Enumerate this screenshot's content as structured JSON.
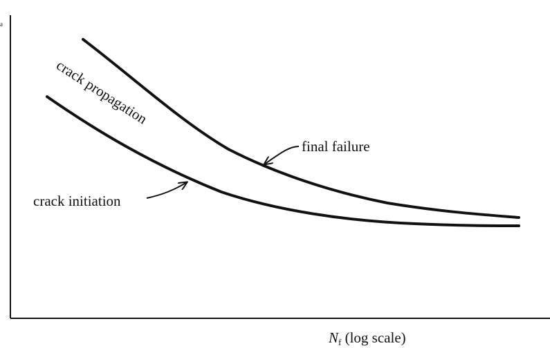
{
  "diagram": {
    "y_axis_label_fragment": "a",
    "x_axis_label": {
      "symbol": "N",
      "subscript": "f",
      "suffix": " (log scale)"
    },
    "curves": [
      {
        "id": "final-failure",
        "label": "final failure"
      },
      {
        "id": "crack-initiation",
        "label": "crack initiation"
      }
    ],
    "region_label": "crack propagation",
    "colors": {
      "ink": "#111111",
      "background": "#ffffff"
    }
  }
}
